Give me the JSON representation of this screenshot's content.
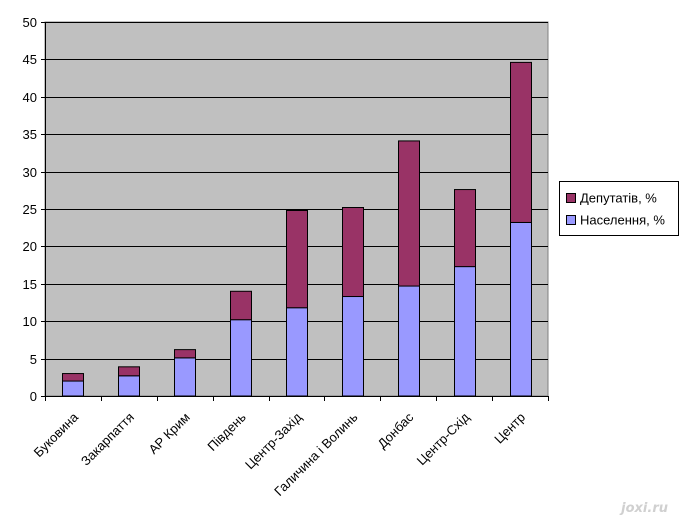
{
  "chart_data": {
    "type": "bar",
    "stacked": true,
    "categories": [
      "Буковина",
      "Закарпаття",
      "АР Крим",
      "Південь",
      "Центр-Захід",
      "Галичина і Волинь",
      "Донбас",
      "Центр-Схід",
      "Центр"
    ],
    "series": [
      {
        "name": "Населення, %",
        "color": "#9999ff",
        "values": [
          2.0,
          2.7,
          5.1,
          10.2,
          11.8,
          13.3,
          14.7,
          17.3,
          23.2
        ]
      },
      {
        "name": "Депутатів, %",
        "color": "#993366",
        "values": [
          1.0,
          1.2,
          1.1,
          3.8,
          13.0,
          11.9,
          19.4,
          10.3,
          21.4
        ]
      }
    ],
    "ylim": [
      0,
      50
    ],
    "yticks": [
      0,
      5,
      10,
      15,
      20,
      25,
      30,
      35,
      40,
      45,
      50
    ],
    "plot_background": "#c0c0c0",
    "grid": true,
    "legend_position": "right",
    "legend_entries": [
      "Депутатів, %",
      "Населення, %"
    ],
    "title": "",
    "xlabel": "",
    "ylabel": ""
  },
  "watermark": "joxi.ru"
}
